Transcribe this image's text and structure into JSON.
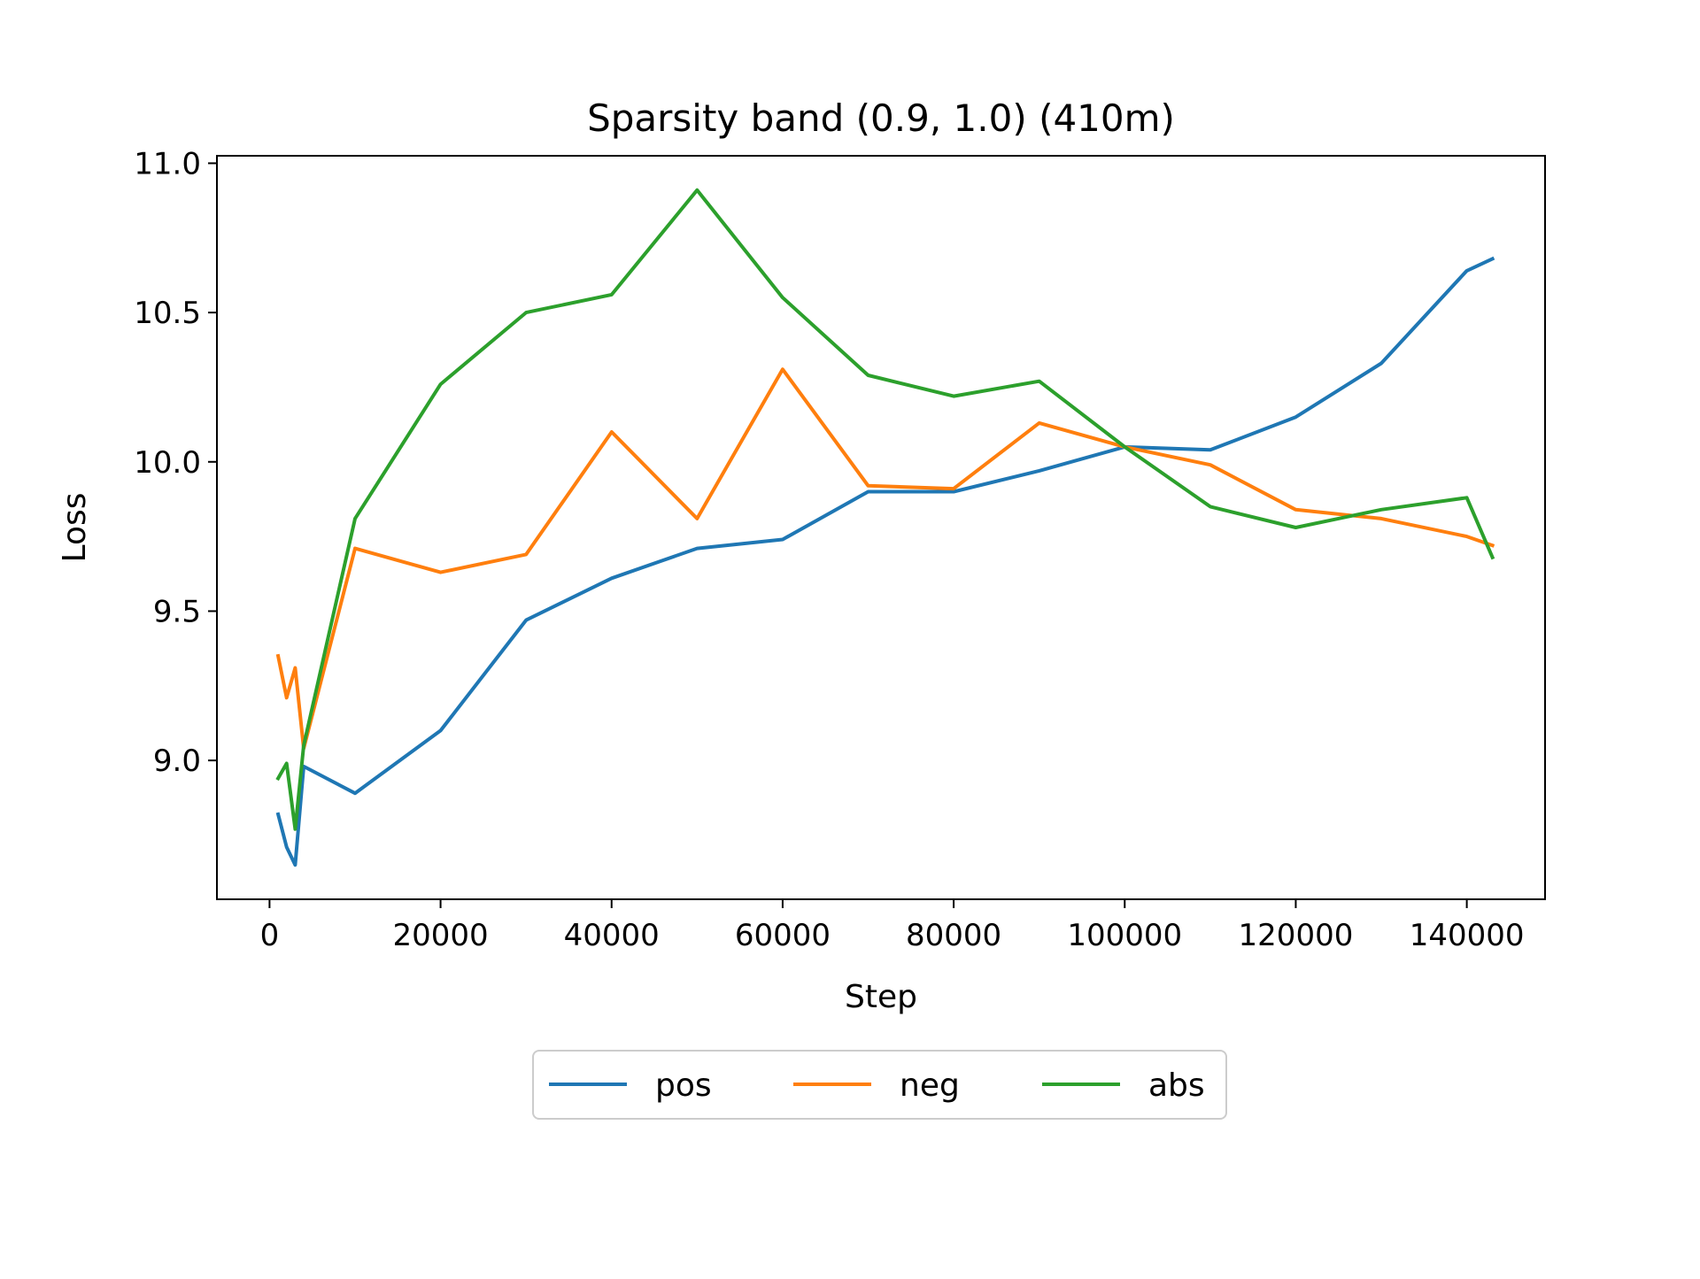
{
  "chart_data": {
    "type": "line",
    "title": "Sparsity band (0.9, 1.0) (410m)",
    "xlabel": "Step",
    "ylabel": "Loss",
    "xlim": [
      -6150,
      149150
    ],
    "ylim": [
      8.535,
      11.025
    ],
    "xticks": [
      0,
      20000,
      40000,
      60000,
      80000,
      100000,
      120000,
      140000
    ],
    "yticks": [
      9.0,
      9.5,
      10.0,
      10.5,
      11.0
    ],
    "ytick_labels": [
      "9.0",
      "9.5",
      "10.0",
      "10.5",
      "11.0"
    ],
    "grid": false,
    "legend_position": "below-center",
    "series": [
      {
        "name": "pos",
        "color": "#1f77b4",
        "x": [
          1000,
          2000,
          3000,
          4000,
          10000,
          20000,
          30000,
          40000,
          50000,
          60000,
          70000,
          80000,
          90000,
          100000,
          110000,
          120000,
          130000,
          140000,
          143000
        ],
        "y": [
          8.82,
          8.71,
          8.65,
          8.98,
          8.89,
          9.1,
          9.47,
          9.61,
          9.71,
          9.74,
          9.9,
          9.9,
          9.97,
          10.05,
          10.04,
          10.15,
          10.33,
          10.64,
          10.68
        ]
      },
      {
        "name": "neg",
        "color": "#ff7f0e",
        "x": [
          1000,
          2000,
          3000,
          4000,
          10000,
          20000,
          30000,
          40000,
          50000,
          60000,
          70000,
          80000,
          90000,
          100000,
          110000,
          120000,
          130000,
          140000,
          143000
        ],
        "y": [
          9.35,
          9.21,
          9.31,
          9.04,
          9.71,
          9.63,
          9.69,
          10.1,
          9.81,
          10.31,
          9.92,
          9.91,
          10.13,
          10.05,
          9.99,
          9.84,
          9.81,
          9.75,
          9.72
        ]
      },
      {
        "name": "abs",
        "color": "#2ca02c",
        "x": [
          1000,
          2000,
          3000,
          4000,
          10000,
          20000,
          30000,
          40000,
          50000,
          60000,
          70000,
          80000,
          90000,
          100000,
          110000,
          120000,
          130000,
          140000,
          143000
        ],
        "y": [
          8.94,
          8.99,
          8.77,
          9.05,
          9.81,
          10.26,
          10.5,
          10.56,
          10.91,
          10.55,
          10.29,
          10.22,
          10.27,
          10.05,
          9.85,
          9.78,
          9.84,
          9.88,
          9.68
        ]
      }
    ]
  }
}
